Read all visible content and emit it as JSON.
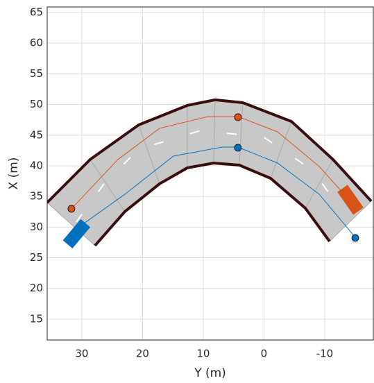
{
  "chart_data": {
    "type": "line",
    "xlabel": "Y (m)",
    "ylabel": "X (m)",
    "xlim": [
      35.7,
      -18
    ],
    "ylim": [
      11.6,
      65.9
    ],
    "xticks": [
      30,
      20,
      10,
      0,
      -10
    ],
    "yticks": [
      15,
      20,
      25,
      30,
      35,
      40,
      45,
      50,
      55,
      60,
      65
    ],
    "grid": true,
    "series": [
      {
        "style": "road-edge",
        "color": "#3b0d0d",
        "x": [
          35.71,
          28.63,
          20.63,
          12.63,
          8.06,
          3.49,
          -4.51,
          -11.37,
          -17.66
        ],
        "y": [
          34.0,
          41.02,
          46.67,
          49.84,
          50.75,
          50.29,
          47.24,
          41.02,
          34.23
        ]
      },
      {
        "style": "road-edge",
        "color": "#3b0d0d",
        "x": [
          27.83,
          22.91,
          17.2,
          12.63,
          8.29,
          4.06,
          -1.09,
          -6.8,
          -10.8
        ],
        "y": [
          26.99,
          32.53,
          37.06,
          39.66,
          40.45,
          40.11,
          37.96,
          33.1,
          27.67
        ]
      },
      {
        "style": "lane-marking",
        "color": "#ffffff",
        "x": [
          30.91,
          26.34,
          20.63,
          10.34,
          0,
          -7.94,
          -12.51
        ],
        "y": [
          30.84,
          37.06,
          42.71,
          45.77,
          44.64,
          39.32,
          33.1
        ]
      },
      {
        "style": "path",
        "color": "#d95319",
        "x": [
          31.71,
          24.06,
          17.2,
          9.2,
          4.29,
          -2.23,
          -9.09,
          -14.23
        ],
        "y": [
          32.99,
          41.02,
          46.11,
          48.03,
          48.03,
          45.54,
          39.89,
          34.23
        ]
      },
      {
        "style": "path",
        "color": "#0072bd",
        "x": [
          30.91,
          22.91,
          14.91,
          6.91,
          4.29,
          -2.23,
          -9.09,
          -15.03
        ],
        "y": [
          29.71,
          35.36,
          41.58,
          43.05,
          43.05,
          40.45,
          35.36,
          28.35
        ]
      },
      {
        "style": "waypoint",
        "color": "#d95319",
        "x": [
          31.71,
          4.29
        ],
        "y": [
          32.99,
          47.92
        ]
      },
      {
        "style": "waypoint",
        "color": "#0072bd",
        "x": [
          4.29,
          -15.03
        ],
        "y": [
          42.94,
          28.24
        ]
      },
      {
        "style": "vehicle",
        "color": "#0072bd",
        "heading": -50,
        "x": [
          30.86
        ],
        "y": [
          28.92
        ]
      },
      {
        "style": "vehicle",
        "color": "#d95319",
        "heading": 55,
        "x": [
          -14.23
        ],
        "y": [
          34.46
        ]
      }
    ]
  }
}
